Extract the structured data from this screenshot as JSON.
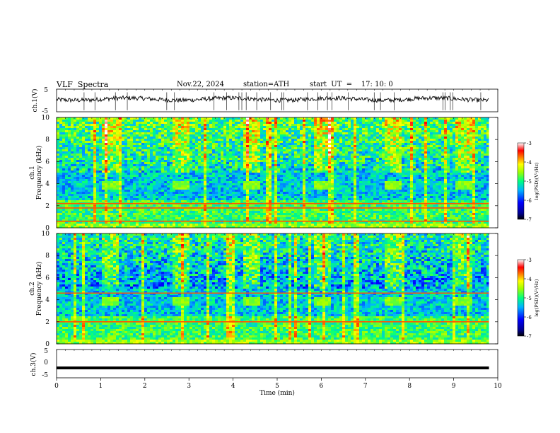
{
  "header": {
    "title": "VLF  Spectra",
    "date": "Nov.22, 2024",
    "station": "station=ATH",
    "start": "start  UT  =    17: 10: 0"
  },
  "chart_data": [
    {
      "type": "line",
      "panel": "ch1-waveform",
      "ylabel": "ch.1(V)",
      "ylim": [
        -5,
        5
      ],
      "yticks": [
        "5",
        "-5"
      ],
      "series": [
        {
          "x_range": [
            0,
            9.8
          ],
          "baseline": 0.6,
          "noise": 1.2
        }
      ]
    },
    {
      "type": "heatmap",
      "panel": "ch1-spectrogram",
      "ylabel": "ch.1\nFrequency (kHz)",
      "ylim": [
        0,
        10
      ],
      "yticks": [
        "0",
        "2",
        "4",
        "6",
        "8",
        "10"
      ],
      "xlim": [
        0,
        9.8
      ],
      "bursts_min": [
        1.0,
        2.6,
        4.2,
        5.8,
        7.4,
        9.0
      ],
      "bursts_khz": [
        3.6,
        4.4
      ],
      "lines_khz": [
        0.6,
        1.8,
        2.2
      ],
      "colorbar": {
        "label": "log(PSD)(V²/Hz)",
        "ticks": [
          "-3",
          "-4",
          "-5",
          "-6",
          "-7"
        ],
        "range": [
          -7,
          -3
        ]
      }
    },
    {
      "type": "heatmap",
      "panel": "ch2-spectrogram",
      "ylabel": "ch.2\nFrequency (kHz)",
      "ylim": [
        0,
        10
      ],
      "yticks": [
        "0",
        "2",
        "4",
        "6",
        "8",
        "10"
      ],
      "xlim": [
        0,
        9.8
      ],
      "bursts_min": [
        1.0,
        2.6,
        4.2,
        5.8,
        7.4,
        9.0
      ],
      "bursts_khz": [
        3.6,
        4.4
      ],
      "lines_khz": [
        2.0,
        4.6
      ],
      "colorbar": {
        "label": "log(PSD)(V²/Hz)",
        "ticks": [
          "-3",
          "-4",
          "-5",
          "-6",
          "-7"
        ],
        "range": [
          -7,
          -3
        ]
      }
    },
    {
      "type": "line",
      "panel": "ch3-waveform",
      "ylabel": "ch.3(V)",
      "ylim": [
        -5,
        5
      ],
      "yticks": [
        "5",
        "0",
        "-5"
      ],
      "series": [
        {
          "x_range": [
            0,
            9.8
          ],
          "baseline": -1.5
        }
      ]
    }
  ],
  "xaxis": {
    "label": "Time  (min)",
    "ticks": [
      "0",
      "1",
      "2",
      "3",
      "4",
      "5",
      "6",
      "7",
      "8",
      "9",
      "10"
    ],
    "xlim": [
      0,
      10
    ]
  }
}
